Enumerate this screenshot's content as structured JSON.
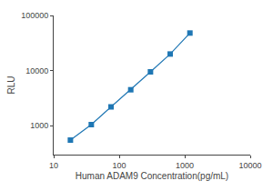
{
  "chart_data": {
    "type": "line",
    "marker": "square",
    "line_style": "solid",
    "x": [
      18,
      37.5,
      75,
      150,
      300,
      600,
      1200
    ],
    "values": [
      550,
      1050,
      2200,
      4500,
      9500,
      20000,
      48000
    ],
    "xlabel": "Human ADAM9 Concentration(pg/mL)",
    "ylabel": "RLU",
    "log": true,
    "xlim": [
      10,
      10000
    ],
    "xticks": [
      10,
      100,
      1000,
      10000
    ],
    "ylim": [
      300,
      100000
    ],
    "yticks": [
      1000,
      10000,
      100000
    ],
    "grid": false
  }
}
